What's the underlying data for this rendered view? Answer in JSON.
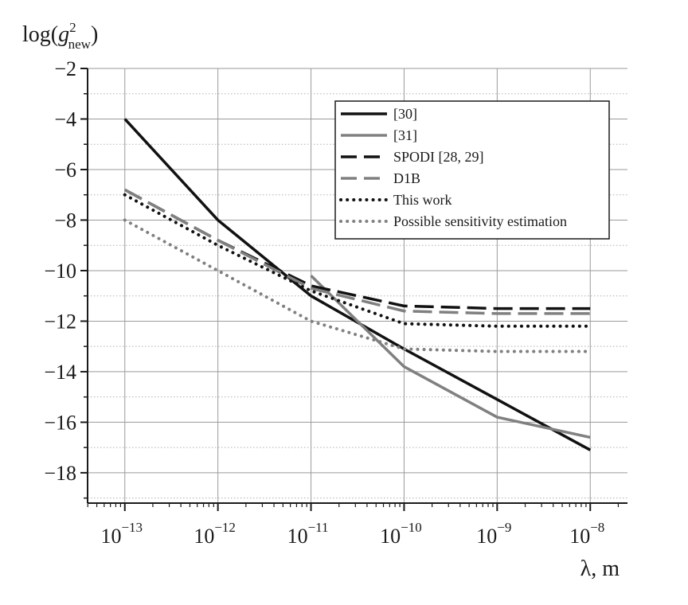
{
  "chart_data": {
    "type": "line",
    "ylabel": {
      "base": "log(",
      "var": "g",
      "sup": "2",
      "sub": "new",
      "close": ")"
    },
    "xlabel": "λ, m",
    "x_scale": "log",
    "xlim": [
      -13.4,
      -7.6
    ],
    "ylim": [
      -19.2,
      -2
    ],
    "x_ticks": [
      {
        "exp": -13,
        "base": "10",
        "sup": "−13"
      },
      {
        "exp": -12,
        "base": "10",
        "sup": "−12"
      },
      {
        "exp": -11,
        "base": "10",
        "sup": "−11"
      },
      {
        "exp": -10,
        "base": "10",
        "sup": "−10"
      },
      {
        "exp": -9,
        "base": "10",
        "sup": "−9"
      },
      {
        "exp": -8,
        "base": "10",
        "sup": "−8"
      }
    ],
    "y_ticks": [
      {
        "value": -2,
        "label": "−2"
      },
      {
        "value": -4,
        "label": "−4"
      },
      {
        "value": -6,
        "label": "−6"
      },
      {
        "value": -8,
        "label": "−8"
      },
      {
        "value": -10,
        "label": "−10"
      },
      {
        "value": -12,
        "label": "−12"
      },
      {
        "value": -14,
        "label": "−14"
      },
      {
        "value": -16,
        "label": "−16"
      },
      {
        "value": -18,
        "label": "−18"
      }
    ],
    "grid": true,
    "legend_position": "top-right",
    "series": [
      {
        "name": "[30]",
        "color": "#111111",
        "dash": "solid",
        "width": 3.5,
        "x": [
          "1e-13",
          "1e-12",
          "1e-11",
          "1e-10",
          "1e-9",
          "1e-8"
        ],
        "y": [
          -4.0,
          -8.0,
          -11.0,
          -13.1,
          -15.1,
          -17.1
        ]
      },
      {
        "name": "[31]",
        "color": "#808080",
        "dash": "solid",
        "width": 3.5,
        "x": [
          "1e-11",
          "1e-10",
          "1e-9",
          "1e-8"
        ],
        "y": [
          -10.2,
          -13.8,
          -15.8,
          -16.6
        ]
      },
      {
        "name": "SPODI [28, 29]",
        "color": "#111111",
        "dash": "long-dash",
        "width": 3.5,
        "x": [
          "1e-13",
          "1e-12",
          "1e-11",
          "1e-10",
          "1e-9",
          "1e-8"
        ],
        "y": [
          -6.8,
          -8.8,
          -10.6,
          -11.4,
          -11.5,
          -11.5
        ]
      },
      {
        "name": "D1B",
        "color": "#808080",
        "dash": "long-dash",
        "width": 3.5,
        "x": [
          "1e-13",
          "1e-12",
          "1e-11",
          "1e-10",
          "1e-9",
          "1e-8"
        ],
        "y": [
          -6.8,
          -8.8,
          -10.7,
          -11.6,
          -11.7,
          -11.7
        ]
      },
      {
        "name": "This work",
        "color": "#111111",
        "dash": "dotted",
        "width": 4,
        "x": [
          "1e-13",
          "1e-12",
          "1e-11",
          "1e-10",
          "1e-9",
          "1e-8"
        ],
        "y": [
          -7.0,
          -9.0,
          -10.8,
          -12.1,
          -12.2,
          -12.2
        ]
      },
      {
        "name": "Possible sensitivity estimation",
        "color": "#808080",
        "dash": "dotted",
        "width": 4,
        "x": [
          "1e-13",
          "1e-12",
          "1e-11",
          "1e-10",
          "1e-9",
          "1e-8"
        ],
        "y": [
          -8.0,
          -10.0,
          -12.0,
          -13.1,
          -13.2,
          -13.2
        ]
      }
    ]
  }
}
